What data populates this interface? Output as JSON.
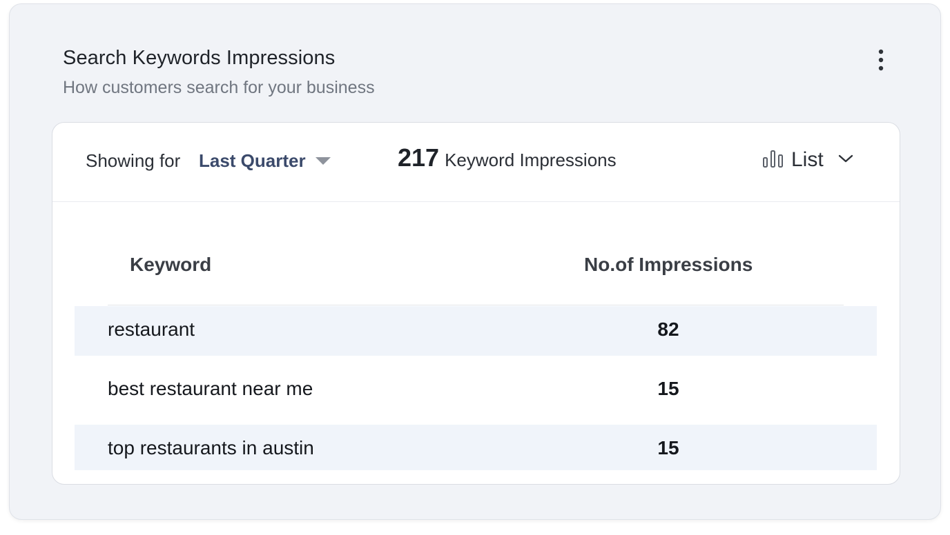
{
  "widget": {
    "title": "Search Keywords Impressions",
    "subtitle": "How customers search for your business",
    "menu_icon": "kebab-vertical-icon"
  },
  "toolbar": {
    "showing_label": "Showing for",
    "period_value": "Last Quarter",
    "period_caret_icon": "caret-down-icon",
    "total_count": "217",
    "total_label": "Keyword Impressions",
    "view_icon": "bar-chart-icon",
    "view_label": "List",
    "view_chevron_icon": "chevron-down-icon"
  },
  "table": {
    "columns": [
      "Keyword",
      "No.of Impressions"
    ],
    "rows": [
      {
        "keyword": "restaurant",
        "impressions": "82"
      },
      {
        "keyword": "best restaurant near me",
        "impressions": "15"
      },
      {
        "keyword": "top restaurants in austin",
        "impressions": "15"
      }
    ]
  },
  "colors": {
    "accent": "#3b4a6b",
    "row_shade": "#f0f4fa",
    "page_bg": "#f1f3f7"
  }
}
